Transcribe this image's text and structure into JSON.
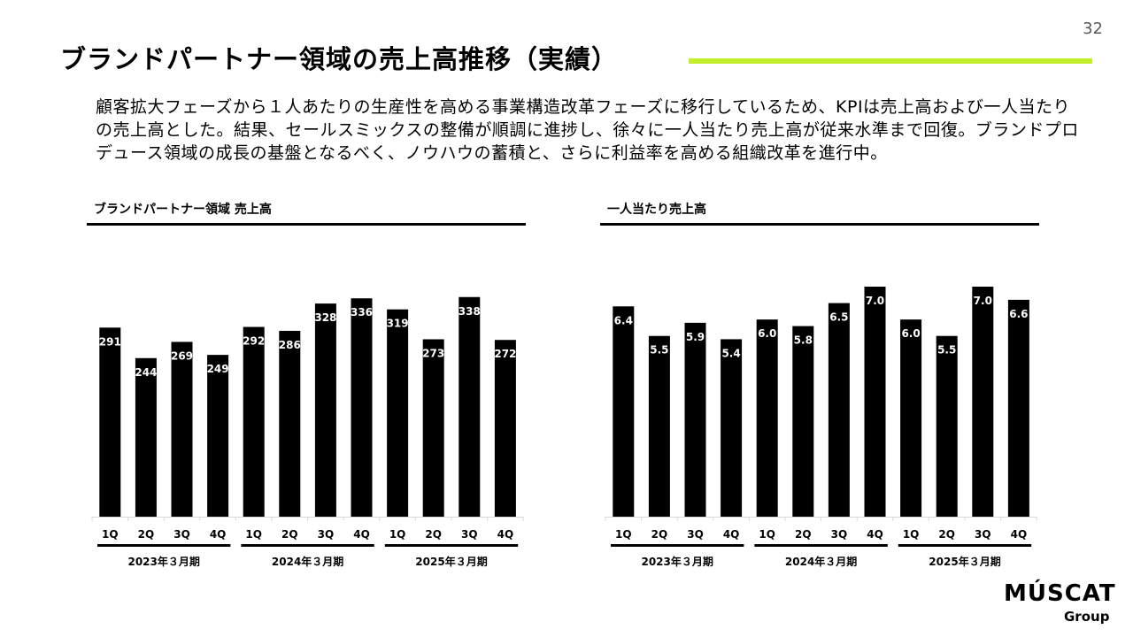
{
  "page": {
    "number": "32",
    "title": "ブランドパートナー領域の売上高推移（実績）",
    "accent_color": "#c3ef2a",
    "intro": "顧客拡大フェーズから１人あたりの生産性を高める事業構造改革フェーズに移行しているため、KPIは売上高および一人当たりの売上高とした。結果、セールスミックスの整備が順調に進捗し、徐々に一人当たり売上高が従来水準まで回復。ブランドプロデュース領域の成長の基盤となるべく、ノウハウの蓄積と、さらに利益率を高める組織改革を進行中。"
  },
  "logo": {
    "main": "MÚSCAT",
    "sub": "Group"
  },
  "chart_data": [
    {
      "type": "bar",
      "title": "ブランドパートナー領域 売上高",
      "categories": [
        "1Q",
        "2Q",
        "3Q",
        "4Q",
        "1Q",
        "2Q",
        "3Q",
        "4Q",
        "1Q",
        "2Q",
        "3Q",
        "4Q"
      ],
      "groups": [
        {
          "label": "2023年３月期",
          "size": 4
        },
        {
          "label": "2024年３月期",
          "size": 4
        },
        {
          "label": "2025年３月期",
          "size": 4
        }
      ],
      "values": [
        291,
        244,
        269,
        249,
        292,
        286,
        328,
        336,
        319,
        273,
        338,
        272
      ],
      "labels": [
        "291",
        "244",
        "269",
        "249",
        "292",
        "286",
        "328",
        "336",
        "319",
        "273",
        "338",
        "272"
      ],
      "ylim": [
        0,
        354
      ],
      "bar_color": "#000000",
      "label_color": "#ffffff",
      "grid": false,
      "legend": "none"
    },
    {
      "type": "bar",
      "title": "一人当たり売上高",
      "categories": [
        "1Q",
        "2Q",
        "3Q",
        "4Q",
        "1Q",
        "2Q",
        "3Q",
        "4Q",
        "1Q",
        "2Q",
        "3Q",
        "4Q"
      ],
      "groups": [
        {
          "label": "2023年３月期",
          "size": 4
        },
        {
          "label": "2024年３月期",
          "size": 4
        },
        {
          "label": "2025年３月期",
          "size": 4
        }
      ],
      "values": [
        6.4,
        5.5,
        5.9,
        5.4,
        6.0,
        5.8,
        6.5,
        7.0,
        6.0,
        5.5,
        7.0,
        6.6
      ],
      "labels": [
        "6.4",
        "5.5",
        "5.9",
        "5.4",
        "6.0",
        "5.8",
        "6.5",
        "7.0",
        "6.0",
        "5.5",
        "7.0",
        "6.6"
      ],
      "ylim": [
        0,
        7.0
      ],
      "bar_color": "#000000",
      "label_color": "#ffffff",
      "grid": false,
      "legend": "none"
    }
  ]
}
